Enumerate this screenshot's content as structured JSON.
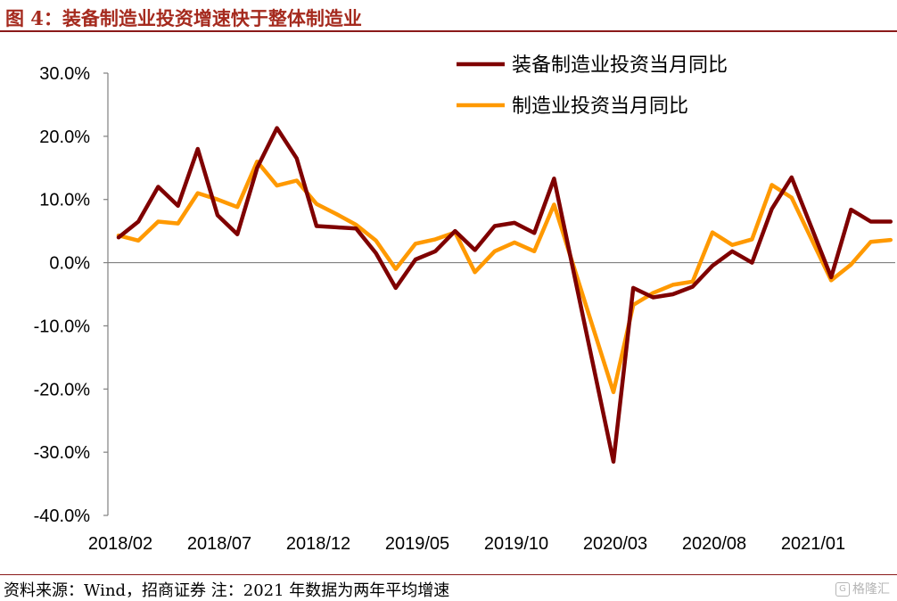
{
  "header": {
    "title": "图 4：装备制造业投资增速快于整体制造业"
  },
  "footer": {
    "source": "资料来源：Wind，招商证券 注：2021 年数据为两年平均增速"
  },
  "watermark": {
    "text": "格隆汇",
    "icon": "g-logo-icon"
  },
  "colors": {
    "equipment": "#7f0000",
    "manufacturing": "#ff9900",
    "title": "#a52a1e",
    "axis": "#808080"
  },
  "chart_data": {
    "type": "line",
    "title": "",
    "xlabel": "",
    "ylabel": "",
    "ylim": [
      -40,
      30
    ],
    "yticks": [
      30,
      20,
      10,
      0,
      -10,
      -20,
      -30,
      -40
    ],
    "ytick_labels": [
      "30.0%",
      "20.0%",
      "10.0%",
      "0.0%",
      "-10.0%",
      "-20.0%",
      "-30.0%",
      "-40.0%"
    ],
    "x": [
      "2018/02",
      "2018/03",
      "2018/04",
      "2018/05",
      "2018/06",
      "2018/07",
      "2018/08",
      "2018/09",
      "2018/10",
      "2018/11",
      "2018/12",
      "2019/01",
      "2019/02",
      "2019/03",
      "2019/04",
      "2019/05",
      "2019/06",
      "2019/07",
      "2019/08",
      "2019/09",
      "2019/10",
      "2019/11",
      "2019/12",
      "2020/01",
      "2020/02",
      "2020/03",
      "2020/04",
      "2020/05",
      "2020/06",
      "2020/07",
      "2020/08",
      "2020/09",
      "2020/10",
      "2020/11",
      "2020/12",
      "2021/01",
      "2021/02",
      "2021/03",
      "2021/04",
      "2021/05"
    ],
    "xtick_labels": [
      "2018/02",
      "2018/07",
      "2018/12",
      "2019/05",
      "2019/10",
      "2020/03",
      "2020/08",
      "2021/01"
    ],
    "legend_position": "top-right",
    "grid": false,
    "series": [
      {
        "name": "装备制造业投资当月同比",
        "color": "#7f0000",
        "values": [
          4.0,
          6.5,
          12.0,
          9.0,
          18.0,
          7.5,
          4.5,
          15.0,
          21.3,
          16.5,
          5.8,
          5.6,
          5.4,
          1.5,
          -4.0,
          0.5,
          1.8,
          5.0,
          2.0,
          5.8,
          6.3,
          4.7,
          13.3,
          null,
          null,
          -31.5,
          -4.0,
          -5.5,
          -5.0,
          -3.8,
          -0.5,
          1.8,
          0.0,
          8.5,
          13.5,
          null,
          -2.3,
          8.4,
          6.5,
          6.5
        ]
      },
      {
        "name": "制造业投资当月同比",
        "color": "#ff9900",
        "values": [
          4.3,
          3.5,
          6.5,
          6.2,
          11.0,
          10.0,
          8.8,
          16.0,
          12.2,
          13.0,
          9.3,
          7.7,
          6.0,
          3.5,
          -1.0,
          3.0,
          3.7,
          4.8,
          -1.5,
          1.8,
          3.2,
          1.8,
          9.2,
          null,
          null,
          -20.5,
          -6.7,
          -4.8,
          -3.5,
          -3.0,
          4.8,
          2.8,
          3.7,
          12.3,
          10.3,
          null,
          -2.8,
          -0.3,
          3.3,
          3.6
        ]
      }
    ]
  }
}
